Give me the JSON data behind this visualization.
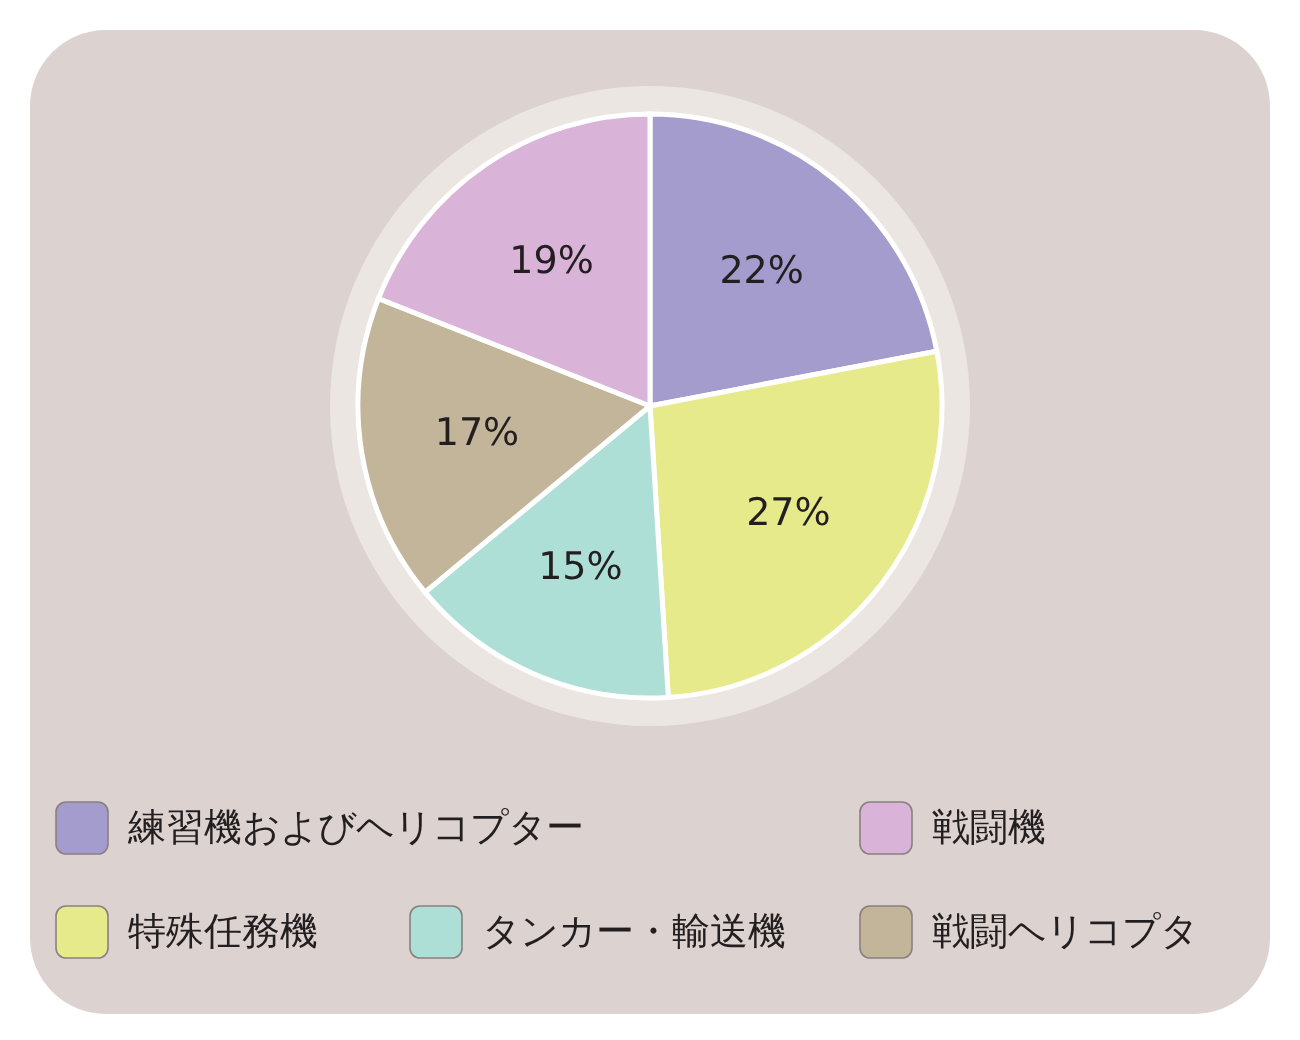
{
  "chart_data": {
    "type": "pie",
    "categories": [
      "練習機およびヘリコプター",
      "特殊任務機",
      "タンカー・輸送機",
      "戦闘ヘリコプタ",
      "戦闘機"
    ],
    "values": [
      22,
      27,
      15,
      17,
      19
    ],
    "colors": [
      "#a39ccc",
      "#e6ea8a",
      "#addfd6",
      "#c2b59a",
      "#d9b4d8"
    ],
    "value_labels": [
      "22%",
      "27%",
      "15%",
      "17%",
      "19%"
    ],
    "legend": "bottom"
  }
}
